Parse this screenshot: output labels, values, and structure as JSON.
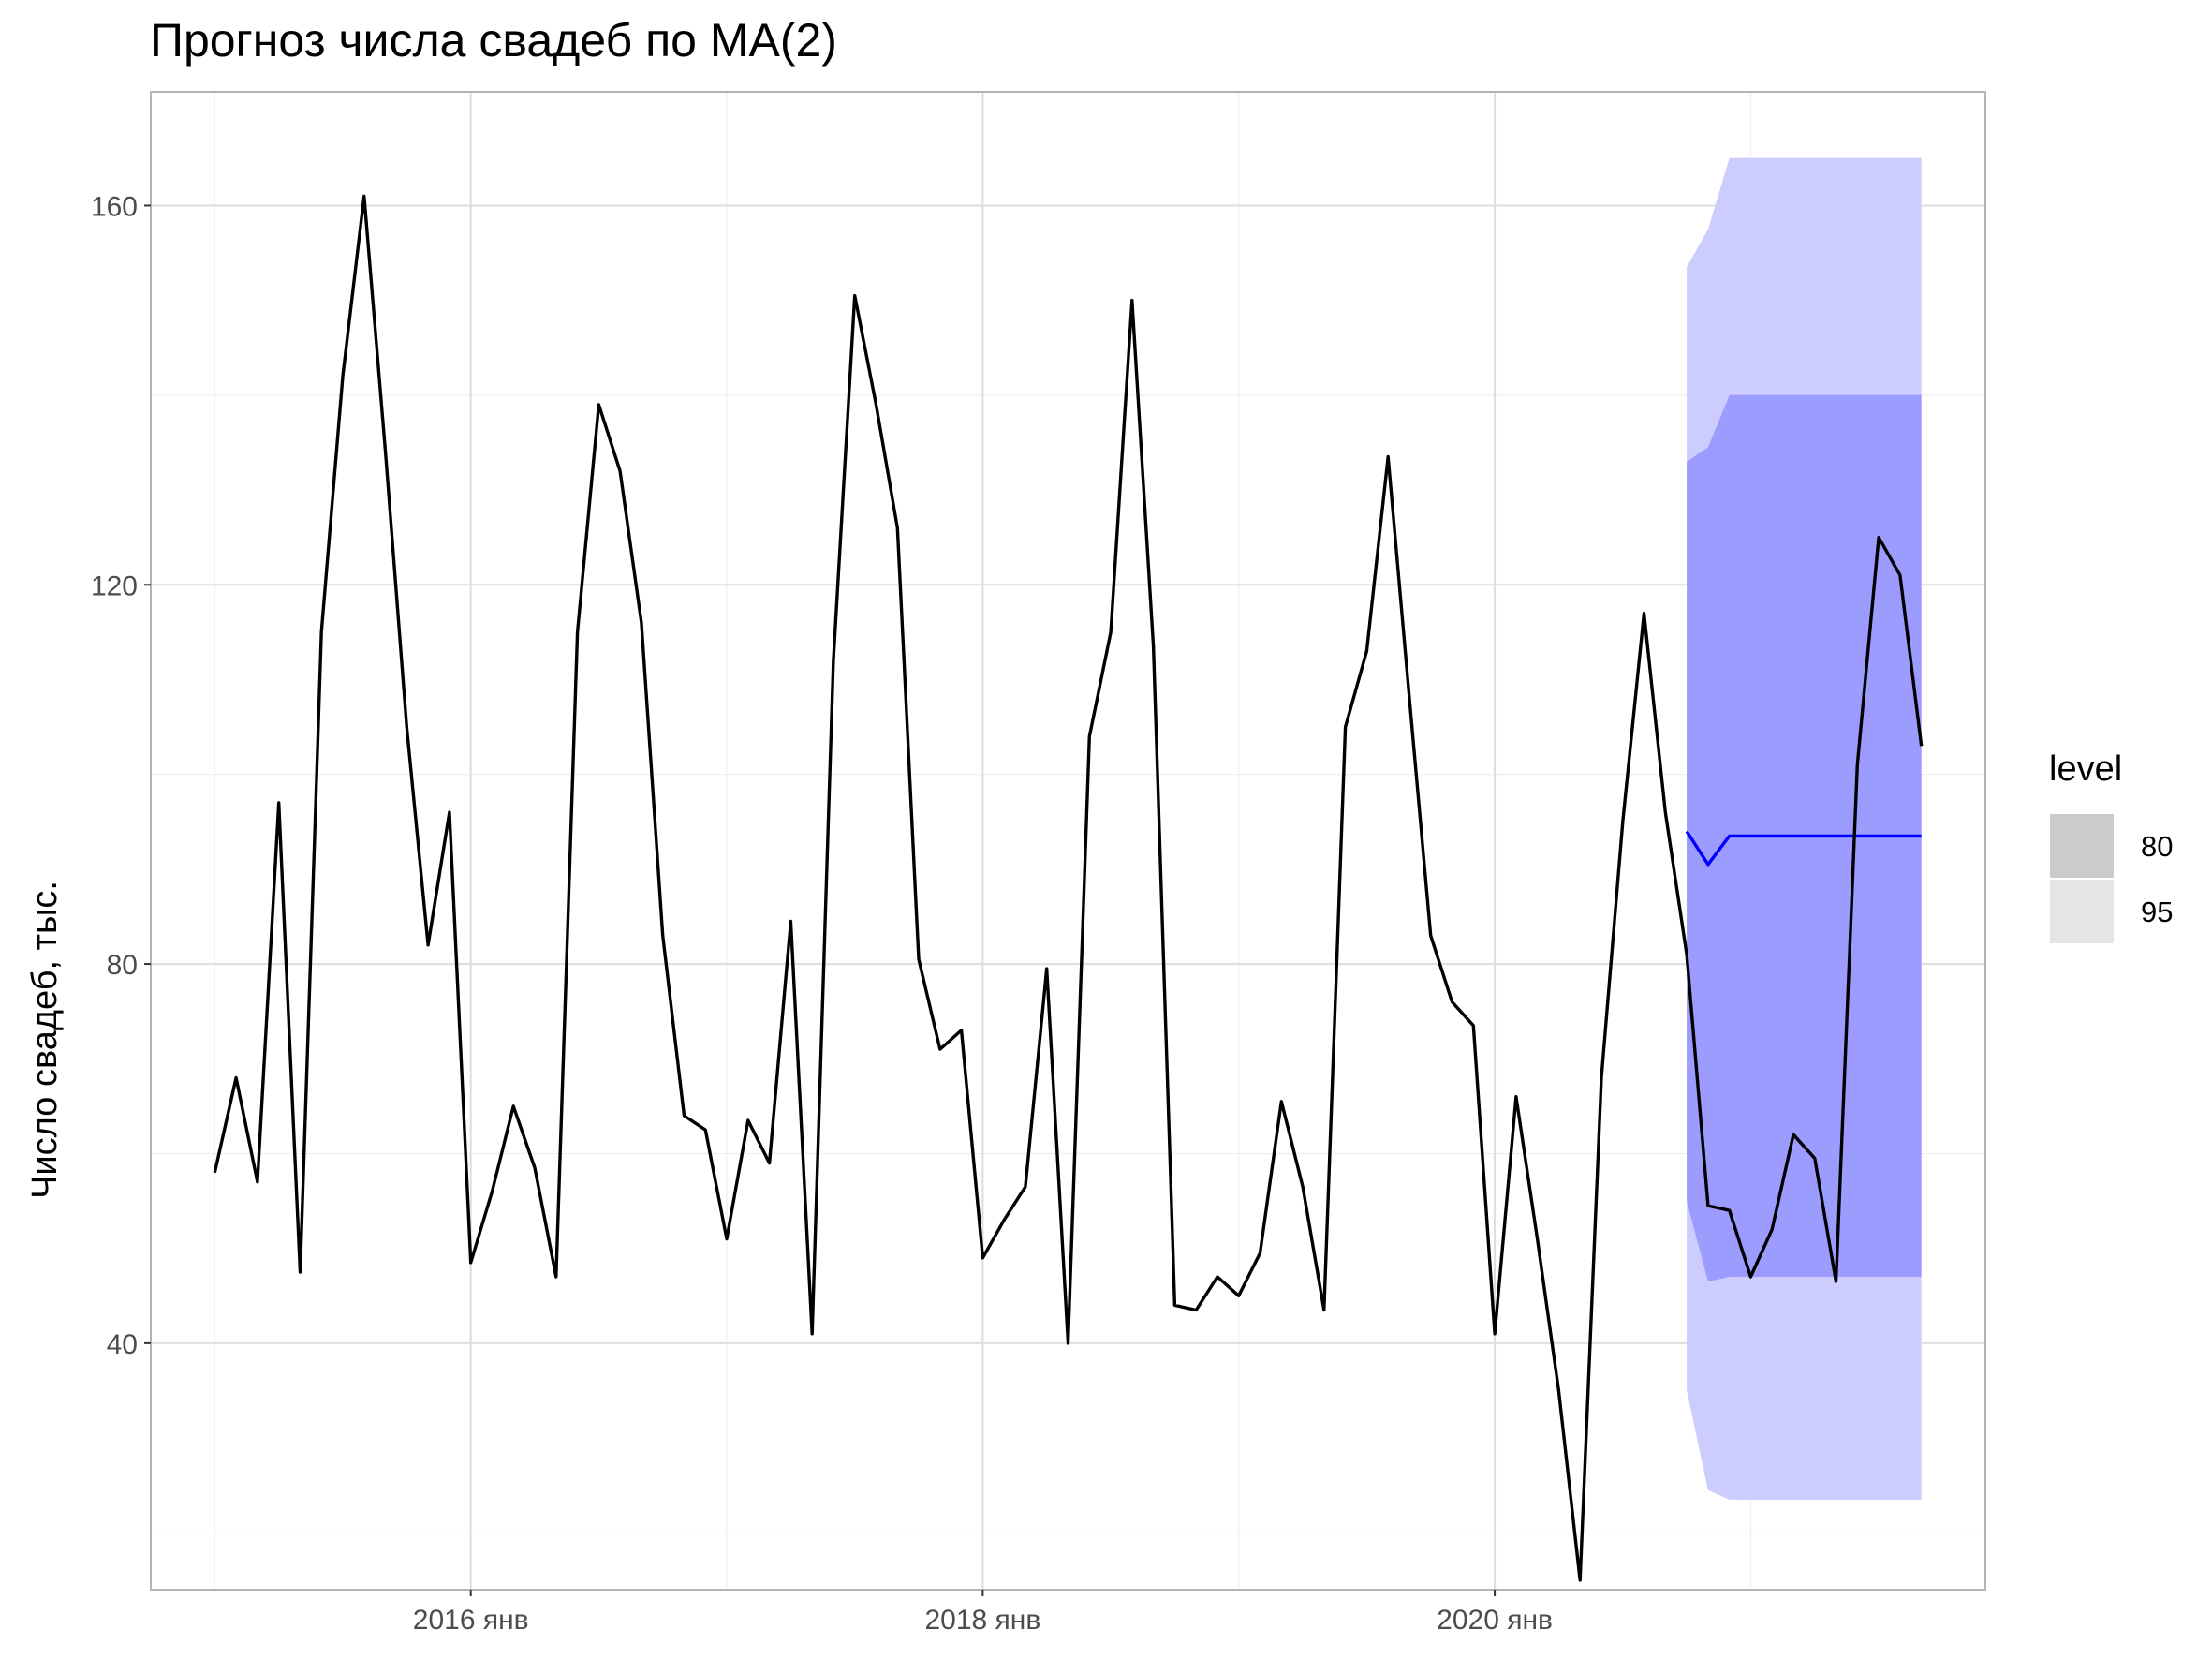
{
  "chart_data": {
    "type": "line",
    "title": "Прогноз числа свадеб по MA(2)",
    "xlabel": "",
    "ylabel": "Число свадеб, тыс.",
    "x_ticks": [
      {
        "date": "2016-01",
        "label": "2016 янв"
      },
      {
        "date": "2018-01",
        "label": "2018 янв"
      },
      {
        "date": "2020-01",
        "label": "2020 янв"
      }
    ],
    "y_ticks": [
      40,
      80,
      120,
      160
    ],
    "xlim": [
      "2014-10",
      "2021-12"
    ],
    "ylim": [
      14,
      172
    ],
    "grid": true,
    "legend": {
      "position": "right",
      "title": "level",
      "entries": [
        {
          "label": "80",
          "color": "#cccccc"
        },
        {
          "label": "95",
          "color": "#e5e5e5"
        }
      ]
    },
    "colors": {
      "actual_line": "#000000",
      "forecast_line": "#0000ff",
      "band_80": "#9c9cff",
      "band_95": "#ccccff",
      "grid_major": "#dedede",
      "grid_minor": "#efefef",
      "panel_border": "#b3b3b3"
    },
    "series": [
      {
        "kind": "actual",
        "start": "2015-01",
        "frequency": "monthly",
        "values": [
          58,
          68,
          57,
          97,
          47.5,
          115,
          142,
          161,
          134,
          105,
          82,
          96,
          48.5,
          56,
          65,
          58.5,
          47,
          115,
          139,
          132,
          116,
          83,
          64,
          62.5,
          51,
          63.5,
          59,
          84.5,
          41,
          112,
          150.5,
          139,
          126,
          80.5,
          71,
          73,
          49,
          53,
          56.5,
          79.5,
          40,
          104,
          115,
          150,
          113.5,
          44,
          43.5,
          47,
          45,
          49.5,
          65.5,
          56.5,
          43.5,
          105,
          113,
          133.5,
          108,
          83,
          76,
          73.5,
          41,
          66,
          51,
          35,
          15,
          68,
          95,
          117,
          96,
          81,
          54.5,
          54,
          47,
          52,
          62,
          59.5,
          46.5,
          101,
          125,
          121,
          103
        ]
      },
      {
        "kind": "forecast",
        "start": "2020-10",
        "frequency": "monthly",
        "values": [
          94,
          90.5,
          93.5,
          93.5,
          93.5,
          93.5,
          93.5,
          93.5,
          93.5,
          93.5,
          93.5,
          93.5
        ],
        "lo80": [
          55,
          46.5,
          47,
          47,
          47,
          47,
          47,
          47,
          47,
          47,
          47,
          47
        ],
        "hi80": [
          133,
          134.5,
          140,
          140,
          140,
          140,
          140,
          140,
          140,
          140,
          140,
          140
        ],
        "lo95": [
          35,
          24.5,
          23.5,
          23.5,
          23.5,
          23.5,
          23.5,
          23.5,
          23.5,
          23.5,
          23.5,
          23.5
        ],
        "hi95": [
          153.5,
          157.5,
          165,
          165,
          165,
          165,
          165,
          165,
          165,
          165,
          165,
          165
        ]
      }
    ]
  }
}
